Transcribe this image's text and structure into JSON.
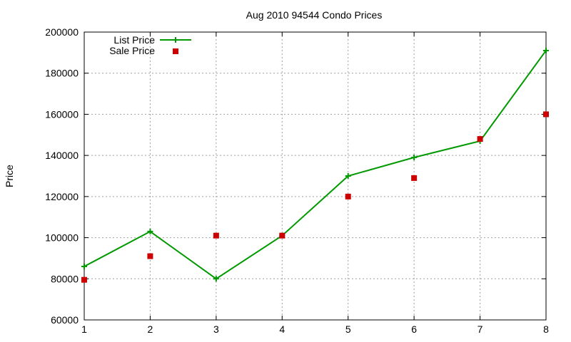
{
  "chart_data": {
    "type": "line",
    "title": "Aug 2010 94544 Condo Prices",
    "xlabel": "",
    "ylabel": "Price",
    "x": [
      1,
      2,
      3,
      4,
      5,
      6,
      7,
      8
    ],
    "xlim": [
      1,
      8
    ],
    "ylim": [
      60000,
      200000
    ],
    "xticks": [
      1,
      2,
      3,
      4,
      5,
      6,
      7,
      8
    ],
    "yticks": [
      60000,
      80000,
      100000,
      120000,
      140000,
      160000,
      180000,
      200000
    ],
    "grid": true,
    "legend_position": "top-left",
    "series": [
      {
        "name": "List Price",
        "style": "line-with-plus-markers",
        "color": "#009900",
        "values": [
          86000,
          103000,
          80000,
          101000,
          130000,
          139000,
          147000,
          191000
        ]
      },
      {
        "name": "Sale Price",
        "style": "square-markers",
        "color": "#cc0000",
        "values": [
          79500,
          91000,
          101000,
          101000,
          120000,
          129000,
          148000,
          160000
        ]
      }
    ]
  }
}
